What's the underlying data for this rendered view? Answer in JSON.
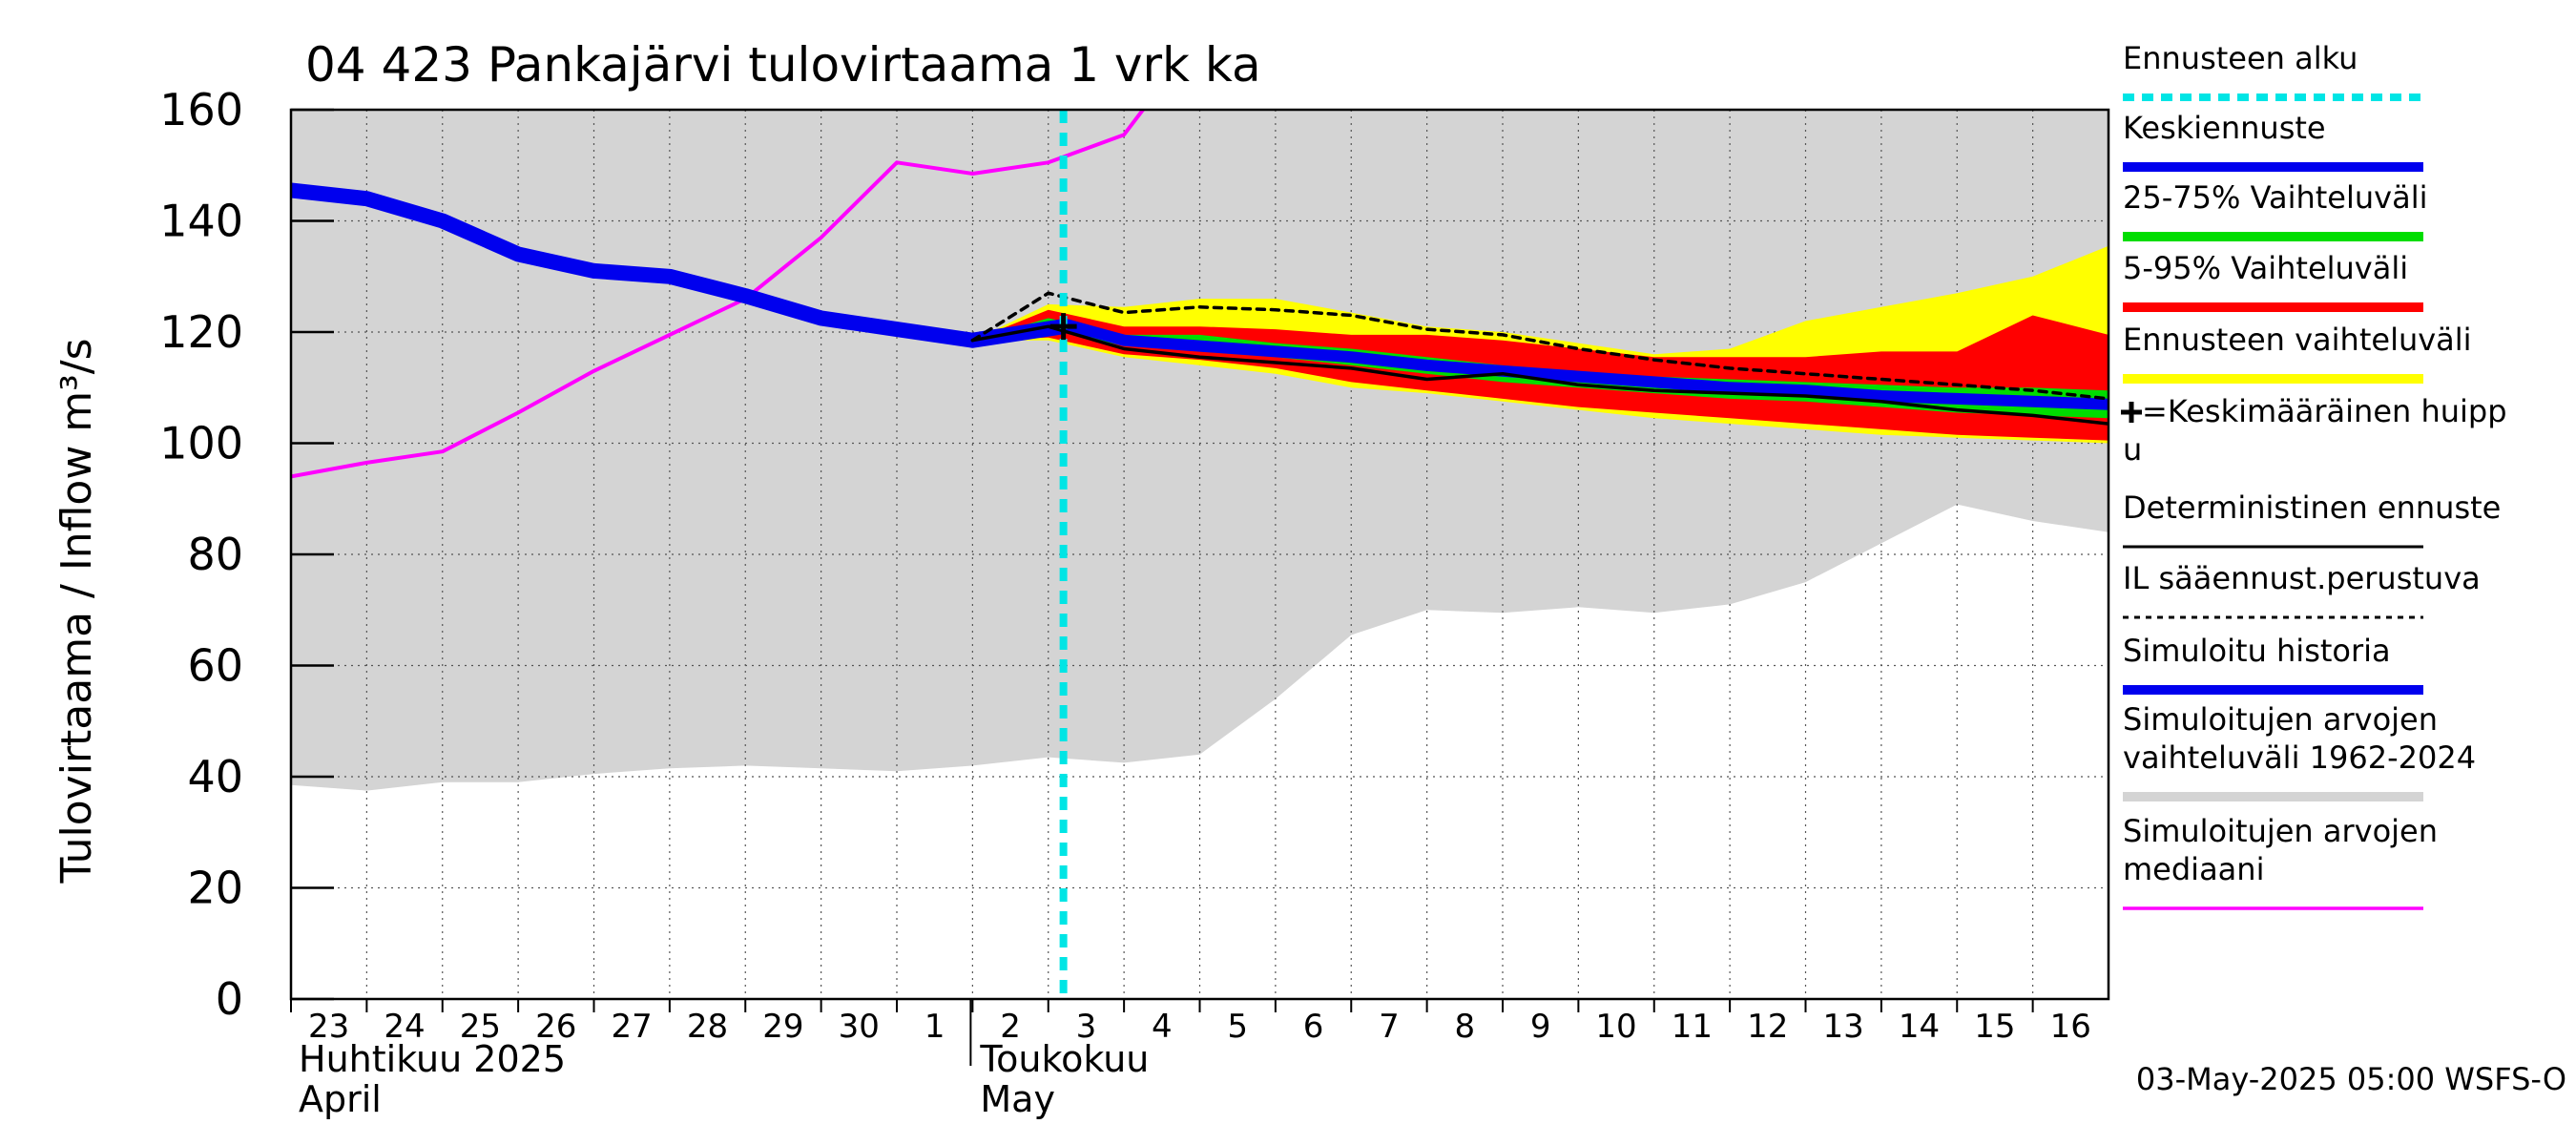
{
  "title": "04 423 Pankajärvi tulovirtaama 1 vrk ka",
  "ylabel": "Tulovirtaama / Inflow   m³/s",
  "timestamp": "03-May-2025 05:00 WSFS-O",
  "colors": {
    "history_range": "#d4d4d4",
    "forecast_range": "#ffff00",
    "p5_95": "#ff0000",
    "p25_75": "#00dd00",
    "mean_forecast": "#0000ee",
    "deterministic": "#000000",
    "il_forecast": "#000000",
    "simulated_history": "#0000ee",
    "median": "#ff00ff",
    "forecast_start": "#00e5e5"
  },
  "legend": [
    {
      "key": "forecast_start",
      "label": "Ennusteen alku",
      "style": "dashed-cyan"
    },
    {
      "key": "mean_forecast",
      "label": "Keskiennuste",
      "style": "thick-blue"
    },
    {
      "key": "p25_75",
      "label": "25-75% Vaihteluväli",
      "style": "thick-green"
    },
    {
      "key": "p5_95",
      "label": "5-95% Vaihteluväli",
      "style": "thick-red"
    },
    {
      "key": "forecast_range",
      "label": "Ennusteen vaihteluväli",
      "style": "thick-yellow"
    },
    {
      "key": "peak",
      "label": "=Keskimääräinen huipp",
      "label2": "u",
      "style": "plus"
    },
    {
      "key": "deterministic",
      "label": "Deterministinen ennuste",
      "style": "thin-black"
    },
    {
      "key": "il_forecast",
      "label": "IL sääennust.perustuva",
      "style": "dotted-black"
    },
    {
      "key": "simulated_history",
      "label": "Simuloitu historia",
      "style": "thick-blue"
    },
    {
      "key": "history_range",
      "label": "Simuloitujen arvojen",
      "label2": "vaihteluväli 1962-2024",
      "style": "thick-gray"
    },
    {
      "key": "median",
      "label": "Simuloitujen arvojen",
      "label2": "mediaani",
      "style": "thin-magenta"
    }
  ],
  "chart_data": {
    "type": "line",
    "ylim": [
      0,
      160
    ],
    "yticks": [
      0,
      20,
      40,
      60,
      80,
      100,
      120,
      140,
      160
    ],
    "xlim": [
      0,
      24
    ],
    "x_day_labels": [
      "23",
      "24",
      "25",
      "26",
      "27",
      "28",
      "29",
      "30",
      "1",
      "2",
      "3",
      "4",
      "5",
      "6",
      "7",
      "8",
      "9",
      "10",
      "11",
      "12",
      "13",
      "14",
      "15",
      "16"
    ],
    "month_labels": [
      {
        "at_day_index": 0,
        "line1": "Huhtikuu  2025",
        "line2": "April"
      },
      {
        "at_day_index": 9,
        "line1": "Toukokuu",
        "line2": "May"
      }
    ],
    "forecast_start_x": 10.2,
    "history_range_upper": [
      [
        0,
        160
      ],
      [
        24,
        160
      ]
    ],
    "history_range_lower": [
      [
        0,
        38.5
      ],
      [
        1,
        37.5
      ],
      [
        2,
        39
      ],
      [
        3,
        39
      ],
      [
        4,
        40.5
      ],
      [
        5,
        41.5
      ],
      [
        6,
        42
      ],
      [
        7,
        41.5
      ],
      [
        8,
        41
      ],
      [
        9,
        42
      ],
      [
        10,
        43.5
      ],
      [
        11,
        42.5
      ],
      [
        12,
        44
      ],
      [
        13,
        54
      ],
      [
        14,
        65.5
      ],
      [
        15,
        70
      ],
      [
        16,
        69.5
      ],
      [
        17,
        70.5
      ],
      [
        18,
        69.5
      ],
      [
        19,
        71
      ],
      [
        20,
        75
      ],
      [
        21,
        82
      ],
      [
        22,
        89
      ],
      [
        23,
        86
      ],
      [
        24,
        84
      ]
    ],
    "simulated_history": [
      [
        0,
        145.5
      ],
      [
        1,
        144
      ],
      [
        2,
        140
      ],
      [
        3,
        134
      ],
      [
        4,
        131
      ],
      [
        5,
        130
      ],
      [
        6,
        126.5
      ],
      [
        7,
        122.5
      ],
      [
        8,
        120.5
      ],
      [
        9,
        118.5
      ],
      [
        10.2,
        121
      ]
    ],
    "median": [
      [
        0,
        94
      ],
      [
        1,
        96.5
      ],
      [
        2,
        98.5
      ],
      [
        3,
        105.5
      ],
      [
        4,
        113
      ],
      [
        5,
        119.5
      ],
      [
        6,
        126
      ],
      [
        7,
        137
      ],
      [
        8,
        150.5
      ],
      [
        9,
        148.5
      ],
      [
        10,
        150.5
      ],
      [
        11,
        155.5
      ],
      [
        11.25,
        160
      ]
    ],
    "forecast_range_upper": [
      [
        9,
        118.5
      ],
      [
        10,
        125
      ],
      [
        11,
        124.5
      ],
      [
        12,
        126
      ],
      [
        13,
        126
      ],
      [
        14,
        123.5
      ],
      [
        15,
        121
      ],
      [
        16,
        120
      ],
      [
        17,
        118
      ],
      [
        18,
        116
      ],
      [
        19,
        117
      ],
      [
        20,
        122
      ],
      [
        21,
        124.5
      ],
      [
        22,
        127
      ],
      [
        23,
        130
      ],
      [
        24,
        135.5
      ]
    ],
    "forecast_range_lower": [
      [
        9,
        118.5
      ],
      [
        10,
        118.5
      ],
      [
        11,
        115.5
      ],
      [
        12,
        114
      ],
      [
        13,
        112.5
      ],
      [
        14,
        110
      ],
      [
        15,
        109
      ],
      [
        16,
        107.5
      ],
      [
        17,
        106
      ],
      [
        18,
        104.5
      ],
      [
        19,
        103.5
      ],
      [
        20,
        102.5
      ],
      [
        21,
        101.5
      ],
      [
        22,
        101
      ],
      [
        23,
        100.5
      ],
      [
        24,
        100
      ]
    ],
    "p5_95_upper": [
      [
        9,
        118.5
      ],
      [
        10,
        124
      ],
      [
        11,
        121
      ],
      [
        12,
        121
      ],
      [
        13,
        120.5
      ],
      [
        14,
        119.5
      ],
      [
        15,
        119.5
      ],
      [
        16,
        118.5
      ],
      [
        17,
        117
      ],
      [
        18,
        115.5
      ],
      [
        19,
        115.5
      ],
      [
        20,
        115.5
      ],
      [
        21,
        116.5
      ],
      [
        22,
        116.5
      ],
      [
        23,
        123
      ],
      [
        24,
        119.5
      ]
    ],
    "p5_95_lower": [
      [
        9,
        118.5
      ],
      [
        10,
        119
      ],
      [
        11,
        116
      ],
      [
        12,
        115
      ],
      [
        13,
        113.5
      ],
      [
        14,
        111
      ],
      [
        15,
        109.5
      ],
      [
        16,
        108
      ],
      [
        17,
        106.5
      ],
      [
        18,
        105.5
      ],
      [
        19,
        104.5
      ],
      [
        20,
        103.5
      ],
      [
        21,
        102.5
      ],
      [
        22,
        101.5
      ],
      [
        23,
        101
      ],
      [
        24,
        100.5
      ]
    ],
    "p25_75_upper": [
      [
        9,
        118.5
      ],
      [
        10,
        122.5
      ],
      [
        11,
        119.5
      ],
      [
        12,
        119.5
      ],
      [
        13,
        118
      ],
      [
        14,
        117
      ],
      [
        15,
        115.5
      ],
      [
        16,
        114
      ],
      [
        17,
        113
      ],
      [
        18,
        112
      ],
      [
        19,
        111.5
      ],
      [
        20,
        111
      ],
      [
        21,
        110.5
      ],
      [
        22,
        110
      ],
      [
        23,
        110
      ],
      [
        24,
        109.5
      ]
    ],
    "p25_75_lower": [
      [
        9,
        118.5
      ],
      [
        10,
        120.5
      ],
      [
        11,
        117.5
      ],
      [
        12,
        116.5
      ],
      [
        13,
        115.5
      ],
      [
        14,
        114
      ],
      [
        15,
        112.5
      ],
      [
        16,
        111
      ],
      [
        17,
        110
      ],
      [
        18,
        109
      ],
      [
        19,
        108
      ],
      [
        20,
        107.5
      ],
      [
        21,
        106.5
      ],
      [
        22,
        105.5
      ],
      [
        23,
        105
      ],
      [
        24,
        104.5
      ]
    ],
    "mean_forecast": [
      [
        10.2,
        121.5
      ],
      [
        11,
        118.5
      ],
      [
        12,
        117.5
      ],
      [
        13,
        116.5
      ],
      [
        14,
        115.5
      ],
      [
        15,
        114
      ],
      [
        16,
        113
      ],
      [
        17,
        112
      ],
      [
        18,
        111
      ],
      [
        19,
        110
      ],
      [
        20,
        109.5
      ],
      [
        21,
        108.5
      ],
      [
        22,
        108
      ],
      [
        23,
        107.5
      ],
      [
        24,
        107
      ]
    ],
    "deterministic": [
      [
        9,
        118.5
      ],
      [
        10,
        121
      ],
      [
        11,
        117
      ],
      [
        12,
        115.5
      ],
      [
        13,
        114.5
      ],
      [
        14,
        113.5
      ],
      [
        15,
        111.5
      ],
      [
        16,
        112.5
      ],
      [
        17,
        110.5
      ],
      [
        18,
        109.5
      ],
      [
        19,
        109
      ],
      [
        20,
        108.5
      ],
      [
        21,
        107.5
      ],
      [
        22,
        106
      ],
      [
        23,
        105
      ],
      [
        24,
        103.5
      ]
    ],
    "il_forecast": [
      [
        9,
        118.5
      ],
      [
        10,
        127
      ],
      [
        11,
        123.5
      ],
      [
        12,
        124.5
      ],
      [
        13,
        124
      ],
      [
        14,
        123
      ],
      [
        15,
        120.5
      ],
      [
        16,
        119.5
      ],
      [
        17,
        117
      ],
      [
        18,
        115
      ],
      [
        19,
        113.5
      ],
      [
        20,
        112.5
      ],
      [
        21,
        111.5
      ],
      [
        22,
        110.5
      ],
      [
        23,
        109.5
      ],
      [
        24,
        108
      ]
    ],
    "peak_marker": [
      10.2,
      121
    ]
  }
}
